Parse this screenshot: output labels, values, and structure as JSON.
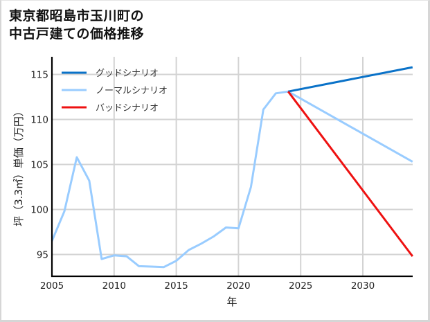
{
  "title_lines": [
    "東京都昭島市玉川町の",
    "中古戸建ての価格推移"
  ],
  "chart_data": {
    "type": "line",
    "title": "東京都昭島市玉川町の中古戸建ての価格推移",
    "xlabel": "年",
    "ylabel": "坪（3.3㎡）単価（万円）",
    "xlim": [
      2005,
      2034
    ],
    "ylim": [
      92.5,
      117.2
    ],
    "xticks": [
      2005,
      2010,
      2015,
      2020,
      2025,
      2030
    ],
    "yticks": [
      95,
      100,
      105,
      110,
      115
    ],
    "grid": true,
    "legend_position": "upper left",
    "series": [
      {
        "name": "グッドシナリオ",
        "color": "#0a72c8",
        "x": [
          2024,
          2034
        ],
        "values": [
          113.1,
          115.8
        ]
      },
      {
        "name": "ノーマルシナリオ",
        "color": "#99ccff",
        "x": [
          2005,
          2006,
          2007,
          2008,
          2009,
          2010,
          2011,
          2012,
          2013,
          2014,
          2015,
          2016,
          2017,
          2018,
          2019,
          2020,
          2021,
          2022,
          2023,
          2024,
          2034
        ],
        "values": [
          96.5,
          99.8,
          105.8,
          103.2,
          94.5,
          94.9,
          94.8,
          93.7,
          93.65,
          93.6,
          94.3,
          95.5,
          96.2,
          97.0,
          98.0,
          97.9,
          102.5,
          111.1,
          112.9,
          113.1,
          105.3
        ]
      },
      {
        "name": "バッドシナリオ",
        "color": "#ee1111",
        "x": [
          2024,
          2034
        ],
        "values": [
          113.1,
          94.8
        ]
      }
    ]
  }
}
